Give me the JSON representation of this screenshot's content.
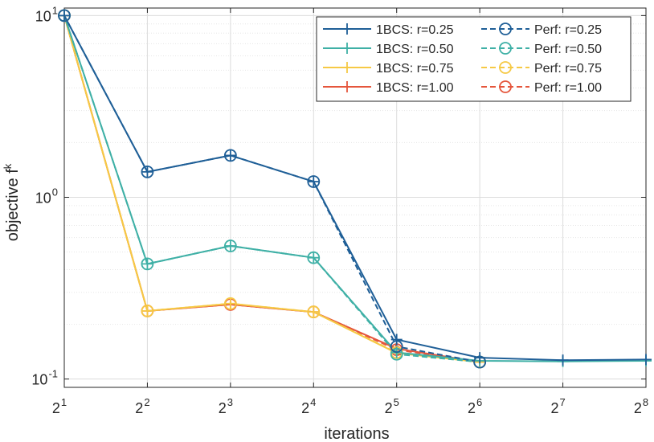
{
  "chart_data": {
    "type": "line",
    "title": "",
    "xlabel": "iterations",
    "ylabel": "objective f",
    "ylabel_superscript": "k",
    "xscale": "log2",
    "yscale": "log10",
    "xlim": [
      2,
      256
    ],
    "ylim": [
      0.09,
      11
    ],
    "grid": true,
    "legend_position": "top-right",
    "x_ticks": [
      {
        "value": 2,
        "base": "2",
        "exp": "1"
      },
      {
        "value": 4,
        "base": "2",
        "exp": "2"
      },
      {
        "value": 8,
        "base": "2",
        "exp": "3"
      },
      {
        "value": 16,
        "base": "2",
        "exp": "4"
      },
      {
        "value": 32,
        "base": "2",
        "exp": "5"
      },
      {
        "value": 64,
        "base": "2",
        "exp": "6"
      },
      {
        "value": 128,
        "base": "2",
        "exp": "7"
      },
      {
        "value": 256,
        "base": "2",
        "exp": "8"
      }
    ],
    "y_ticks": [
      {
        "value": 10,
        "base": "10",
        "exp": "1"
      },
      {
        "value": 1,
        "base": "10",
        "exp": "0"
      },
      {
        "value": 0.1,
        "base": "10",
        "exp": "-1"
      }
    ],
    "series": [
      {
        "name": "1BCS: r=0.25",
        "color": "#1f5f97",
        "style": "solid",
        "marker": "plus",
        "x": [
          2,
          4,
          8,
          16,
          32,
          64,
          128,
          256
        ],
        "values": [
          10,
          1.38,
          1.7,
          1.22,
          0.165,
          0.131,
          0.127,
          0.128
        ]
      },
      {
        "name": "Perf: r=0.25",
        "color": "#1f5f97",
        "style": "dashed",
        "marker": "circle",
        "x": [
          2,
          4,
          8,
          16,
          32,
          64
        ],
        "values": [
          10,
          1.38,
          1.7,
          1.22,
          0.151,
          0.124
        ]
      },
      {
        "name": "1BCS: r=0.50",
        "color": "#3fb0a6",
        "style": "solid",
        "marker": "plus",
        "x": [
          2,
          4,
          8,
          16,
          32,
          64,
          128,
          256
        ],
        "values": [
          10,
          0.43,
          0.54,
          0.465,
          0.14,
          0.126,
          0.125,
          0.126
        ]
      },
      {
        "name": "Perf: r=0.50",
        "color": "#3fb0a6",
        "style": "dashed",
        "marker": "circle",
        "x": [
          2,
          4,
          8,
          16,
          32,
          64
        ],
        "values": [
          10,
          0.43,
          0.54,
          0.465,
          0.137,
          0.124
        ]
      },
      {
        "name": "1BCS: r=0.75",
        "color": "#f6c945",
        "style": "solid",
        "marker": "plus",
        "x": [
          2,
          4,
          8,
          16,
          32,
          64
        ],
        "values": [
          10,
          0.237,
          0.26,
          0.234,
          0.139,
          0.124
        ]
      },
      {
        "name": "Perf: r=0.75",
        "color": "#f6c945",
        "style": "dashed",
        "marker": "circle",
        "x": [
          2,
          4,
          8,
          16,
          32,
          64
        ],
        "values": [
          10,
          0.237,
          0.26,
          0.234,
          0.14,
          0.124
        ]
      },
      {
        "name": "1BCS: r=1.00",
        "color": "#e5563c",
        "style": "solid",
        "marker": "plus",
        "x": [
          2,
          4,
          8,
          16,
          32,
          64
        ],
        "values": [
          10,
          0.237,
          0.257,
          0.234,
          0.147,
          0.124
        ]
      },
      {
        "name": "Perf: r=1.00",
        "color": "#e5563c",
        "style": "dashed",
        "marker": "circle",
        "x": [
          2,
          4,
          8,
          16,
          32,
          64
        ],
        "values": [
          10,
          0.237,
          0.257,
          0.234,
          0.145,
          0.124
        ]
      }
    ],
    "legend_order": [
      [
        "1BCS: r=0.25",
        "Perf: r=0.25"
      ],
      [
        "1BCS: r=0.50",
        "Perf: r=0.50"
      ],
      [
        "1BCS: r=0.75",
        "Perf: r=0.75"
      ],
      [
        "1BCS: r=1.00",
        "Perf: r=1.00"
      ]
    ]
  }
}
